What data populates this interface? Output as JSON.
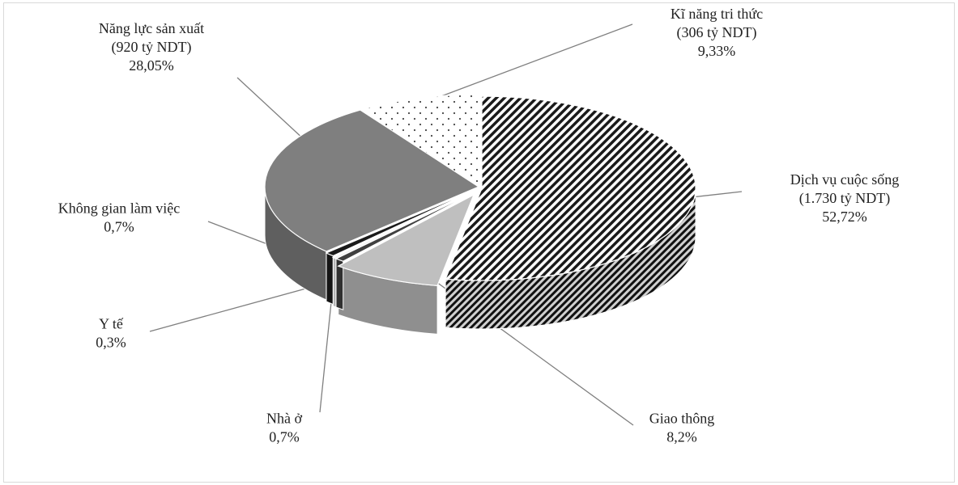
{
  "chart_data": {
    "type": "pie",
    "title": "",
    "slices": [
      {
        "name": "Dịch vụ cuộc sống",
        "amount": "(1.730 tỷ NDT)",
        "percent_label": "52,72%",
        "value": 52.72,
        "fill": "hatch"
      },
      {
        "name": "Giao thông",
        "amount": "",
        "percent_label": "8,2%",
        "value": 8.2,
        "fill": "#bfbfbf"
      },
      {
        "name": "Nhà ở",
        "amount": "",
        "percent_label": "0,7%",
        "value": 0.7,
        "fill": "#404040"
      },
      {
        "name": "Y tế",
        "amount": "",
        "percent_label": "0,3%",
        "value": 0.3,
        "fill": "#f2f2f2"
      },
      {
        "name": "Không gian làm việc",
        "amount": "",
        "percent_label": "0,7%",
        "value": 0.7,
        "fill": "#1a1a1a"
      },
      {
        "name": "Năng lực sản xuất",
        "amount": "(920 tỷ NDT)",
        "percent_label": "28,05%",
        "value": 28.05,
        "fill": "#7f7f7f"
      },
      {
        "name": "Kĩ năng tri thức",
        "amount": "(306 tỷ NDT)",
        "percent_label": "9,33%",
        "value": 9.33,
        "fill": "dots"
      }
    ],
    "start_angle_deg": 0,
    "direction": "clockwise",
    "style": "3d-exploded"
  }
}
